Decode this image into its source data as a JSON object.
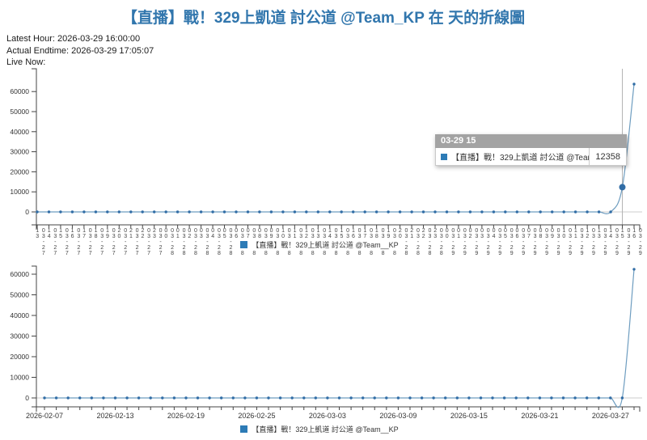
{
  "page": {
    "title": "【直播】戰！329上凱道 討公道 @Team_KP 在 天的折線圖"
  },
  "info": {
    "latest_hour": "Latest Hour: 2026-03-29 16:00:00",
    "actual_endtime": "Actual Endtime: 2026-03-29 17:05:07",
    "live_now": "Live Now:"
  },
  "legend": {
    "label": "【直播】戰！329上凱道 討公道 @Team__KP"
  },
  "tooltip": {
    "header": "03-29 15",
    "series": "【直播】戰！329上凱道 討公道 @Team__KP",
    "value": "12358"
  },
  "colors": {
    "title_color": "#3176ad",
    "line_color": "#6e9dc0",
    "dot_color": "#316da6",
    "series_swatch_color": "#2d7bb6",
    "tooltip_header_bg": "#a3a3a3",
    "zero_line_color": "#cccccc",
    "crosshair_color": "#b3b3b3",
    "axis_color": "#444444",
    "tick_label_color": "#333333"
  },
  "chart_data": [
    {
      "name": "hourly",
      "type": "line",
      "title": "",
      "x": [
        "03-27 13",
        "03-27 14",
        "03-27 15",
        "03-27 16",
        "03-27 17",
        "03-27 18",
        "03-27 19",
        "03-27 20",
        "03-27 21",
        "03-27 22",
        "03-27 23",
        "03-28 00",
        "03-28 01",
        "03-28 02",
        "03-28 03",
        "03-28 04",
        "03-28 05",
        "03-28 06",
        "03-28 07",
        "03-28 08",
        "03-28 09",
        "03-28 10",
        "03-28 11",
        "03-28 12",
        "03-28 13",
        "03-28 14",
        "03-28 15",
        "03-28 16",
        "03-28 17",
        "03-28 18",
        "03-28 19",
        "03-28 20",
        "03-28 21",
        "03-28 22",
        "03-28 23",
        "03-29 00",
        "03-29 01",
        "03-29 02",
        "03-29 03",
        "03-29 04",
        "03-29 05",
        "03-29 06",
        "03-29 07",
        "03-29 08",
        "03-29 09",
        "03-29 10",
        "03-29 11",
        "03-29 12",
        "03-29 13",
        "03-29 14",
        "03-29 15",
        "03-29 16"
      ],
      "series": [
        {
          "name": "【直播】戰！329上凱道 討公道 @Team__KP",
          "values": [
            0,
            0,
            0,
            0,
            0,
            0,
            0,
            0,
            0,
            0,
            0,
            0,
            0,
            0,
            0,
            0,
            0,
            0,
            0,
            0,
            0,
            0,
            0,
            0,
            0,
            0,
            0,
            0,
            0,
            0,
            0,
            0,
            0,
            0,
            0,
            0,
            0,
            0,
            0,
            0,
            0,
            0,
            0,
            0,
            0,
            0,
            0,
            0,
            0,
            0,
            12358,
            63700
          ]
        }
      ],
      "y_ticks": [
        0,
        10000,
        20000,
        30000,
        40000,
        50000,
        60000
      ],
      "ylim": [
        -6450,
        71400
      ],
      "label_every": 1,
      "label_orientation": "vertical",
      "legend_position": "bottom-center",
      "grid": false,
      "highlight": {
        "x_label": "03-29 15",
        "value": 12358
      }
    },
    {
      "name": "daily",
      "type": "line",
      "title": "",
      "x": [
        "2026-02-07",
        "2026-02-08",
        "2026-02-09",
        "2026-02-10",
        "2026-02-11",
        "2026-02-12",
        "2026-02-13",
        "2026-02-14",
        "2026-02-15",
        "2026-02-16",
        "2026-02-17",
        "2026-02-18",
        "2026-02-19",
        "2026-02-20",
        "2026-02-21",
        "2026-02-22",
        "2026-02-23",
        "2026-02-24",
        "2026-02-25",
        "2026-02-26",
        "2026-02-27",
        "2026-02-28",
        "2026-03-01",
        "2026-03-02",
        "2026-03-03",
        "2026-03-04",
        "2026-03-05",
        "2026-03-06",
        "2026-03-07",
        "2026-03-08",
        "2026-03-09",
        "2026-03-10",
        "2026-03-11",
        "2026-03-12",
        "2026-03-13",
        "2026-03-14",
        "2026-03-15",
        "2026-03-16",
        "2026-03-17",
        "2026-03-18",
        "2026-03-19",
        "2026-03-20",
        "2026-03-21",
        "2026-03-22",
        "2026-03-23",
        "2026-03-24",
        "2026-03-25",
        "2026-03-26",
        "2026-03-27",
        "2026-03-28",
        "2026-03-29"
      ],
      "series": [
        {
          "name": "【直播】戰！329上凱道 討公道 @Team__KP",
          "values": [
            0,
            0,
            0,
            0,
            0,
            0,
            0,
            0,
            0,
            0,
            0,
            0,
            0,
            0,
            0,
            0,
            0,
            0,
            0,
            0,
            0,
            0,
            0,
            0,
            0,
            0,
            0,
            0,
            0,
            0,
            0,
            0,
            0,
            0,
            0,
            0,
            0,
            0,
            0,
            0,
            0,
            0,
            0,
            0,
            0,
            0,
            0,
            0,
            0,
            0,
            62400
          ]
        }
      ],
      "y_ticks": [
        0,
        10000,
        20000,
        30000,
        40000,
        50000,
        60000
      ],
      "ylim": [
        -4300,
        63900
      ],
      "label_every": 6,
      "label_orientation": "horizontal",
      "legend_position": "bottom-center",
      "grid": false,
      "highlight": null
    }
  ]
}
